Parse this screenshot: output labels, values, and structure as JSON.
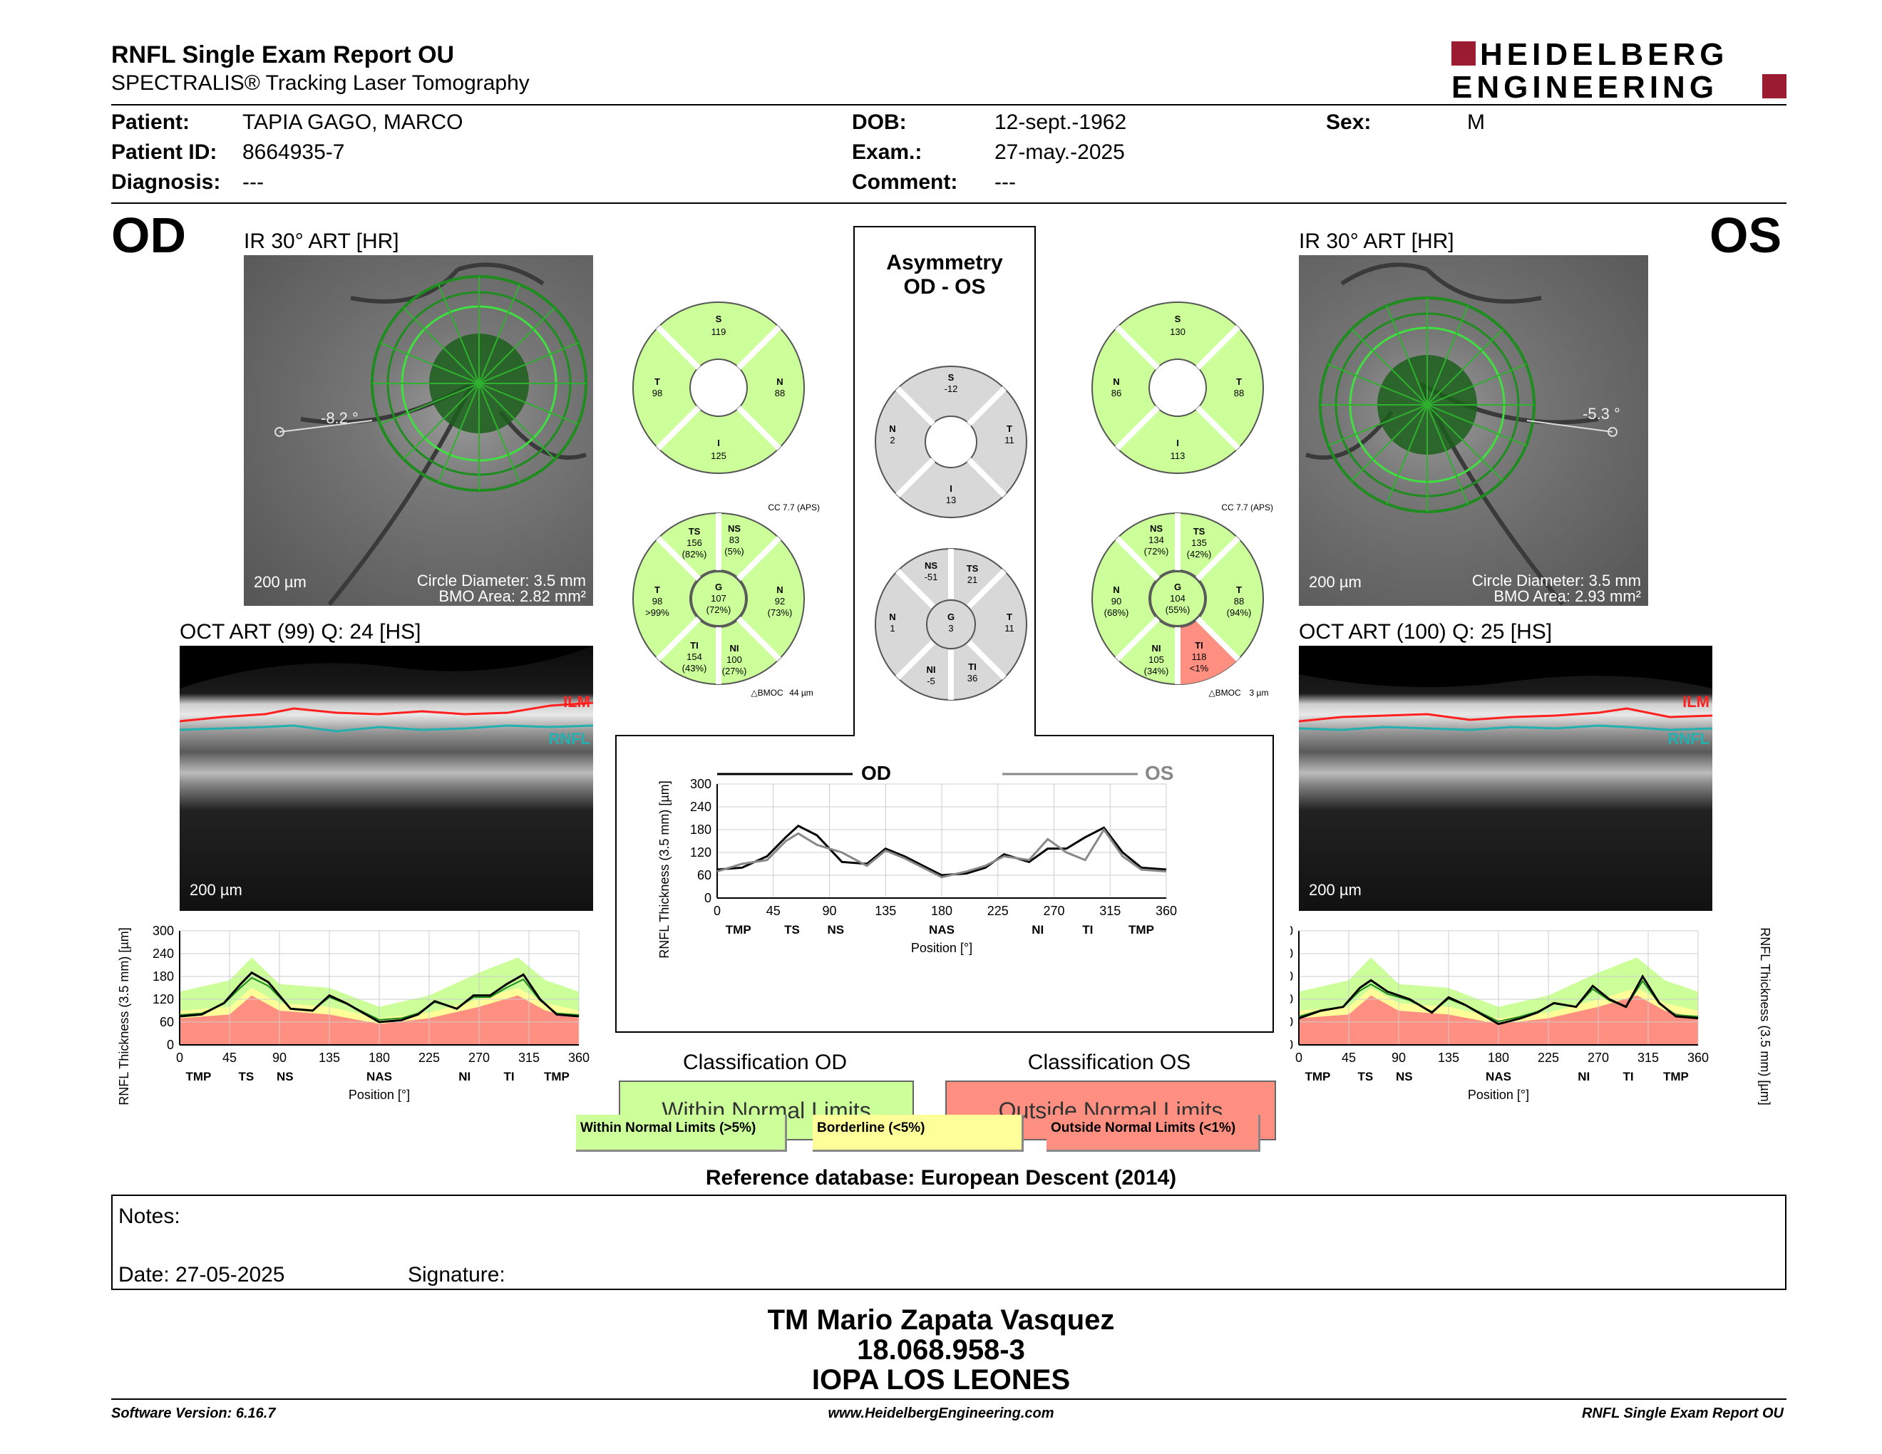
{
  "header": {
    "title": "RNFL Single Exam Report OU",
    "subtitle": "SPECTRALIS® Tracking Laser Tomography",
    "logo_line1": "HEIDELBERG",
    "logo_line2": "ENGINEERING"
  },
  "patient": {
    "patient_label": "Patient:",
    "patient_value": "TAPIA GAGO, MARCO",
    "id_label": "Patient ID:",
    "id_value": "8664935-7",
    "diagnosis_label": "Diagnosis:",
    "diagnosis_value": "---",
    "dob_label": "DOB:",
    "dob_value": "12-sept.-1962",
    "exam_label": "Exam.:",
    "exam_value": "27-may.-2025",
    "comment_label": "Comment:",
    "comment_value": "---",
    "sex_label": "Sex:",
    "sex_value": "M"
  },
  "od": {
    "eye": "OD",
    "ir_title": "IR 30° ART [HR]",
    "angle": "-8.2 °",
    "scale": "200 µm",
    "circle_diameter": "Circle Diameter: 3.5 mm",
    "bmo_area": "BMO Area: 2.82 mm²",
    "oct_title": "OCT ART (99) Q: 24 [HS]",
    "ilm": "ILM",
    "rnfl": "RNFL",
    "quad": {
      "S": "119",
      "T": "98",
      "N": "88",
      "I": "125"
    },
    "cc": "CC 7.7 (APS)",
    "sectors": {
      "TS": [
        "156",
        "(82%)"
      ],
      "NS": [
        "83",
        "(5%)"
      ],
      "T": [
        "98",
        ">99%"
      ],
      "G": [
        "107",
        "(72%)"
      ],
      "N": [
        "92",
        "(73%)"
      ],
      "TI": [
        "154",
        "(43%)"
      ],
      "NI": [
        "100",
        "(27%)"
      ]
    },
    "bmoc": "44 µm",
    "classification_title": "Classification OD",
    "classification": "Within Normal Limits"
  },
  "os": {
    "eye": "OS",
    "ir_title": "IR 30° ART [HR]",
    "angle": "-5.3 °",
    "scale": "200 µm",
    "circle_diameter": "Circle Diameter: 3.5 mm",
    "bmo_area": "BMO Area: 2.93 mm²",
    "oct_title": "OCT ART (100) Q: 25 [HS]",
    "ilm": "ILM",
    "rnfl": "RNFL",
    "quad": {
      "S": "130",
      "N": "86",
      "T": "88",
      "I": "113"
    },
    "cc": "CC 7.7 (APS)",
    "sectors": {
      "NS": [
        "134",
        "(72%)"
      ],
      "TS": [
        "135",
        "(42%)"
      ],
      "N": [
        "90",
        "(68%)"
      ],
      "G": [
        "104",
        "(55%)"
      ],
      "T": [
        "88",
        "(94%)"
      ],
      "NI": [
        "105",
        "(34%)"
      ],
      "TI": [
        "118",
        "<1%"
      ]
    },
    "bmoc": "3 µm",
    "classification_title": "Classification OS",
    "classification": "Outside Normal Limits"
  },
  "asymmetry": {
    "title1": "Asymmetry",
    "title2": "OD - OS",
    "quad": {
      "S": "-12",
      "N": "2",
      "T": "11",
      "I": "13"
    },
    "sectors": {
      "NS": "-51",
      "TS": "21",
      "N": "1",
      "G": "3",
      "T": "11",
      "NI": "-5",
      "TI": "36"
    },
    "legend_od": "OD",
    "legend_os": "OS"
  },
  "axis": {
    "ylabel": "RNFL Thickness (3.5 mm) [µm]",
    "xlabel": "Position [°]",
    "yticks": [
      "0",
      "60",
      "120",
      "180",
      "240",
      "300"
    ],
    "xticks": [
      "0",
      "45",
      "90",
      "135",
      "180",
      "225",
      "270",
      "315",
      "360"
    ],
    "sectors_od": [
      "TMP",
      "TS",
      "NS",
      "NAS",
      "NI",
      "TI",
      "TMP"
    ],
    "sectors_asym": [
      "TMP",
      "TS",
      "NS",
      "NAS",
      "NI",
      "TI",
      "TMP"
    ]
  },
  "legend": {
    "wnl": "Within Normal Limits (>5%)",
    "bl": "Borderline (<5%)",
    "onl": "Outside Normal Limits (<1%)"
  },
  "reference": "Reference database: European Descent (2014)",
  "notes": {
    "notes_label": "Notes:",
    "date": "Date: 27-05-2025",
    "signature": "Signature:"
  },
  "signer": {
    "name": "TM Mario Zapata Vasquez",
    "id": "18.068.958-3",
    "org": "IOPA LOS LEONES"
  },
  "footer": {
    "software": "Software Version: 6.16.7",
    "url": "www.HeidelbergEngineering.com",
    "report": "RNFL Single Exam Report OU"
  },
  "colors": {
    "green": "#ccff99",
    "yellow": "#ffff99",
    "red": "#ff8f80",
    "gray": "#d8d8d8"
  },
  "chart_data": [
    {
      "type": "line",
      "ylabel": "RNFL Thickness (3.5 mm) [µm]",
      "xlabel": "Position [°]",
      "xlim": [
        0,
        360
      ],
      "ylim": [
        0,
        300
      ],
      "series": [
        {
          "name": "OD",
          "x": [
            0,
            20,
            40,
            55,
            65,
            80,
            100,
            120,
            135,
            150,
            165,
            180,
            200,
            215,
            230,
            250,
            265,
            280,
            295,
            310,
            325,
            340,
            360
          ],
          "values": [
            75,
            80,
            110,
            160,
            190,
            165,
            95,
            90,
            130,
            110,
            85,
            60,
            65,
            80,
            115,
            95,
            130,
            130,
            160,
            185,
            120,
            80,
            75
          ]
        }
      ]
    },
    {
      "type": "line",
      "ylabel": "RNFL Thickness (3.5 mm) [µm]",
      "xlabel": "Position [°]",
      "xlim": [
        0,
        360
      ],
      "ylim": [
        0,
        300
      ],
      "series": [
        {
          "name": "OD",
          "x": [
            0,
            20,
            40,
            55,
            65,
            80,
            100,
            120,
            135,
            150,
            165,
            180,
            200,
            215,
            230,
            250,
            265,
            280,
            295,
            310,
            325,
            340,
            360
          ],
          "values": [
            75,
            80,
            110,
            160,
            190,
            165,
            95,
            90,
            130,
            110,
            85,
            60,
            65,
            80,
            115,
            95,
            130,
            130,
            160,
            185,
            120,
            80,
            75
          ]
        },
        {
          "name": "OS",
          "x": [
            0,
            20,
            40,
            55,
            65,
            80,
            100,
            120,
            135,
            150,
            165,
            180,
            200,
            215,
            230,
            250,
            265,
            280,
            295,
            310,
            325,
            340,
            360
          ],
          "values": [
            70,
            90,
            100,
            150,
            170,
            140,
            120,
            85,
            125,
            105,
            80,
            55,
            70,
            85,
            110,
            100,
            155,
            120,
            100,
            180,
            110,
            75,
            70
          ]
        }
      ]
    },
    {
      "type": "line",
      "ylabel": "RNFL Thickness (3.5 mm) [µm]",
      "xlabel": "Position [°]",
      "xlim": [
        0,
        360
      ],
      "ylim": [
        0,
        300
      ],
      "series": [
        {
          "name": "OS",
          "x": [
            0,
            20,
            40,
            55,
            65,
            80,
            100,
            120,
            135,
            150,
            165,
            180,
            200,
            215,
            230,
            250,
            265,
            280,
            295,
            310,
            325,
            340,
            360
          ],
          "values": [
            70,
            90,
            100,
            150,
            170,
            140,
            120,
            85,
            125,
            105,
            80,
            55,
            70,
            85,
            110,
            100,
            155,
            120,
            100,
            180,
            110,
            75,
            70
          ]
        }
      ]
    }
  ]
}
